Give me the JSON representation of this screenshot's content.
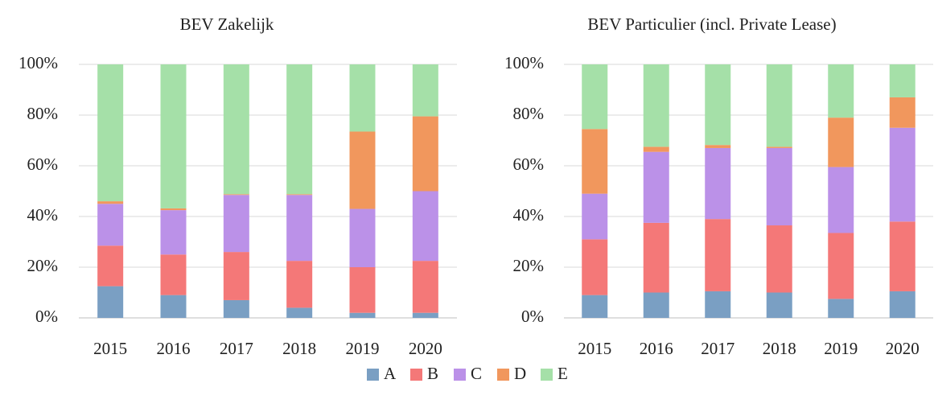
{
  "chart_data": [
    {
      "type": "stacked_bar",
      "title": "BEV Zakelijk",
      "categories": [
        "2015",
        "2016",
        "2017",
        "2018",
        "2019",
        "2020"
      ],
      "series": [
        {
          "name": "A",
          "color": "#7a9fc3",
          "values": [
            12.5,
            9,
            7,
            4,
            2,
            2
          ]
        },
        {
          "name": "B",
          "color": "#f47878",
          "values": [
            16,
            16,
            19,
            18.5,
            18,
            20.5
          ]
        },
        {
          "name": "C",
          "color": "#bb91e8",
          "values": [
            16.5,
            17.5,
            22.5,
            26,
            23,
            27.5
          ]
        },
        {
          "name": "D",
          "color": "#f1975d",
          "values": [
            1,
            0.7,
            0.3,
            0.3,
            30.5,
            29.5
          ]
        },
        {
          "name": "E",
          "color": "#a5e0a8",
          "values": [
            54,
            56.8,
            51.2,
            51.2,
            26.5,
            20.5
          ]
        }
      ],
      "ylim": [
        0,
        100
      ],
      "yticks": [
        {
          "value": 0,
          "label": "0%"
        },
        {
          "value": 20,
          "label": "20%"
        },
        {
          "value": 40,
          "label": "40%"
        },
        {
          "value": 60,
          "label": "60%"
        },
        {
          "value": 80,
          "label": "80%"
        },
        {
          "value": 100,
          "label": "100%"
        }
      ],
      "grid": true
    },
    {
      "type": "stacked_bar",
      "title": "BEV Particulier (incl. Private Lease)",
      "categories": [
        "2015",
        "2016",
        "2017",
        "2018",
        "2019",
        "2020"
      ],
      "series": [
        {
          "name": "A",
          "color": "#7a9fc3",
          "values": [
            9,
            10,
            10.5,
            10,
            7.5,
            10.5
          ]
        },
        {
          "name": "B",
          "color": "#f47878",
          "values": [
            22,
            27.5,
            28.5,
            26.5,
            26,
            27.5
          ]
        },
        {
          "name": "C",
          "color": "#bb91e8",
          "values": [
            18,
            28,
            28,
            30.5,
            26,
            37
          ]
        },
        {
          "name": "D",
          "color": "#f1975d",
          "values": [
            25.5,
            2,
            1.2,
            0.5,
            19.5,
            12
          ]
        },
        {
          "name": "E",
          "color": "#a5e0a8",
          "values": [
            25.5,
            32.5,
            31.8,
            32.5,
            21,
            13
          ]
        }
      ],
      "ylim": [
        0,
        100
      ],
      "yticks": [
        {
          "value": 0,
          "label": "0%"
        },
        {
          "value": 20,
          "label": "20%"
        },
        {
          "value": 40,
          "label": "40%"
        },
        {
          "value": 60,
          "label": "60%"
        },
        {
          "value": 80,
          "label": "80%"
        },
        {
          "value": 100,
          "label": "100%"
        }
      ],
      "grid": true
    }
  ]
}
